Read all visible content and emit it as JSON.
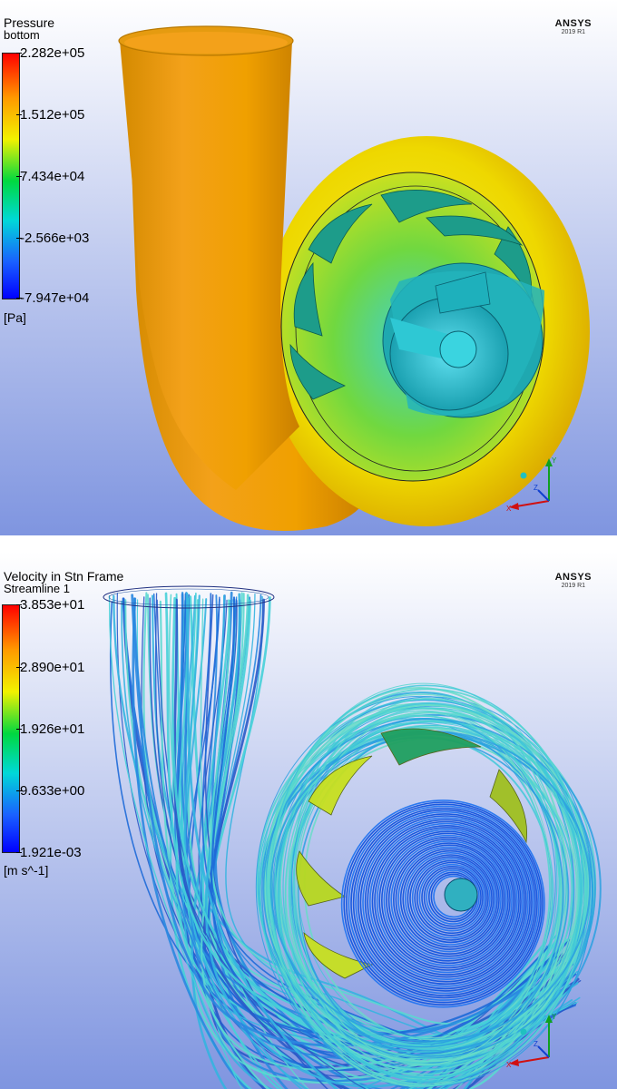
{
  "top_view": {
    "variable": "Pressure",
    "location": "bottom",
    "legend_ticks": [
      "2.282e+05",
      "1.512e+05",
      "7.434e+04",
      "-2.566e+03",
      "-7.947e+04"
    ],
    "unit": "[Pa]",
    "logo": {
      "brand": "ANSYS",
      "version": "2019 R1"
    }
  },
  "bottom_view": {
    "variable": "Velocity in Stn Frame",
    "location": "Streamline 1",
    "legend_ticks": [
      "3.853e+01",
      "2.890e+01",
      "1.926e+01",
      "9.633e+00",
      "1.921e-03"
    ],
    "unit": "[m s^-1]",
    "logo": {
      "brand": "ANSYS",
      "version": "2019 R1"
    }
  },
  "axis_labels": {
    "x": "X",
    "y": "Y",
    "z": "Z"
  },
  "colors": {
    "colormap": [
      "#ff0000",
      "#ff9900",
      "#f2f200",
      "#00d840",
      "#00d8d8",
      "#1a60ff",
      "#0000ff"
    ],
    "axis_x": "#d01010",
    "axis_y": "#10a020",
    "axis_z": "#1040d0"
  }
}
